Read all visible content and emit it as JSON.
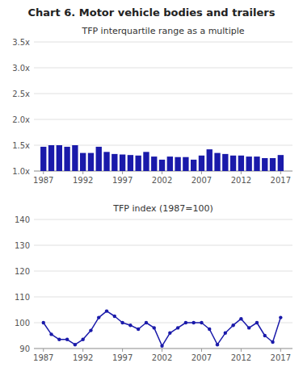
{
  "title": "Chart 6. Motor vehicle bodies and trailers",
  "chart_data": [
    {
      "type": "bar",
      "title": "TFP interquartile range as a multiple",
      "x": [
        1987,
        1988,
        1989,
        1990,
        1991,
        1992,
        1993,
        1994,
        1995,
        1996,
        1997,
        1998,
        1999,
        2000,
        2001,
        2002,
        2003,
        2004,
        2005,
        2006,
        2007,
        2008,
        2009,
        2010,
        2011,
        2012,
        2013,
        2014,
        2015,
        2016,
        2017
      ],
      "values": [
        1.47,
        1.5,
        1.5,
        1.47,
        1.5,
        1.35,
        1.35,
        1.47,
        1.37,
        1.33,
        1.32,
        1.31,
        1.3,
        1.37,
        1.28,
        1.22,
        1.28,
        1.27,
        1.27,
        1.22,
        1.3,
        1.42,
        1.35,
        1.33,
        1.3,
        1.3,
        1.28,
        1.28,
        1.25,
        1.25,
        1.31
      ],
      "color": "#1a1aaa",
      "xlim": [
        1985.8,
        2018.5
      ],
      "xticks": [
        1987,
        1992,
        1997,
        2002,
        2007,
        2012,
        2017
      ],
      "ylim": [
        1.0,
        3.5
      ],
      "yticks": [
        {
          "value": 1.0,
          "label": "1.0x"
        },
        {
          "value": 1.5,
          "label": "1.5x"
        },
        {
          "value": 2.0,
          "label": "2.0x"
        },
        {
          "value": 2.5,
          "label": "2.5x"
        },
        {
          "value": 3.0,
          "label": "3.0x"
        },
        {
          "value": 3.5,
          "label": "3.5x"
        }
      ],
      "grid": true
    },
    {
      "type": "line",
      "title": "TFP index (1987=100)",
      "x": [
        1987,
        1988,
        1989,
        1990,
        1991,
        1992,
        1993,
        1994,
        1995,
        1996,
        1997,
        1998,
        1999,
        2000,
        2001,
        2002,
        2003,
        2004,
        2005,
        2006,
        2007,
        2008,
        2009,
        2010,
        2011,
        2012,
        2013,
        2014,
        2015,
        2016,
        2017
      ],
      "values": [
        100,
        95.5,
        93.5,
        93.5,
        91.5,
        93.5,
        97,
        102,
        104.5,
        102.5,
        100,
        99,
        97.5,
        100,
        98,
        91,
        96,
        98,
        100,
        100,
        100,
        97.5,
        91.5,
        96,
        99,
        101.5,
        98,
        100,
        95,
        92.5,
        102
      ],
      "color": "#1a1aaa",
      "marker": "circle",
      "xlim": [
        1985.8,
        2018.5
      ],
      "xticks": [
        1987,
        1992,
        1997,
        2002,
        2007,
        2012,
        2017
      ],
      "ylim": [
        90,
        140
      ],
      "yticks": [
        90,
        100,
        110,
        120,
        130,
        140
      ],
      "grid": true
    }
  ]
}
